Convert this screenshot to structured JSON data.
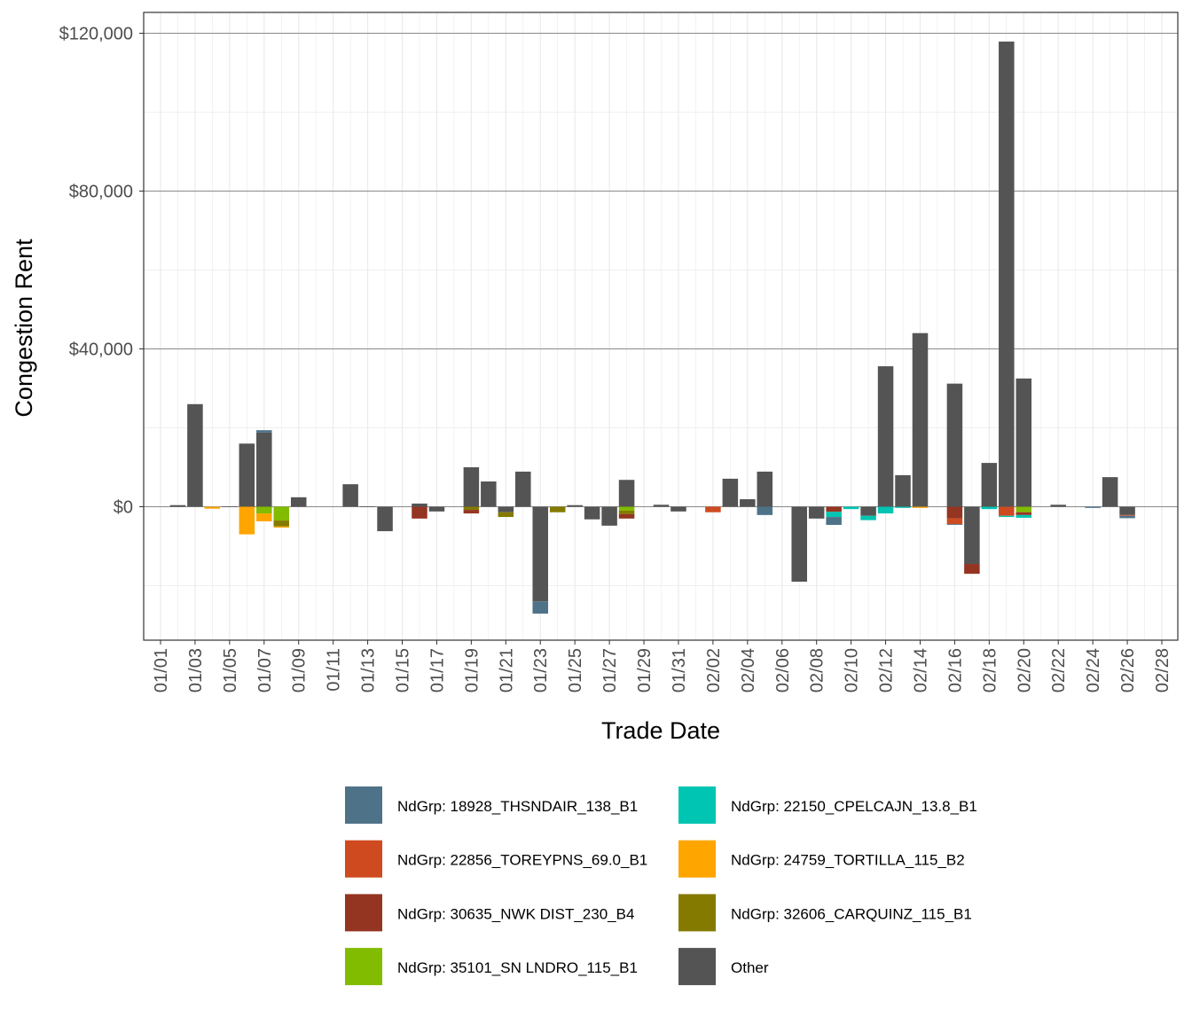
{
  "chart_data": {
    "type": "bar",
    "stacked": true,
    "xlabel": "Trade Date",
    "ylabel": "Congestion Rent",
    "ylim": [
      -34000,
      125000
    ],
    "yticks": [
      0,
      40000,
      80000,
      120000
    ],
    "ytick_labels": [
      "$0",
      "$40,000",
      "$80,000",
      "$120,000"
    ],
    "xlim": [
      "01/01",
      "02/28"
    ],
    "xtick_labels": [
      "01/01",
      "01/03",
      "01/05",
      "01/07",
      "01/09",
      "01/11",
      "01/13",
      "01/15",
      "01/17",
      "01/19",
      "01/21",
      "01/23",
      "01/25",
      "01/27",
      "01/29",
      "01/31",
      "02/02",
      "02/04",
      "02/06",
      "02/08",
      "02/10",
      "02/12",
      "02/14",
      "02/16",
      "02/18",
      "02/20",
      "02/22",
      "02/24",
      "02/26",
      "02/28"
    ],
    "grid": true,
    "legend_position": "bottom",
    "series": [
      {
        "name": "NdGrp: 18928_THSNDAIR_138_B1",
        "color": "#4E7389",
        "points": [
          [
            "01/07",
            600
          ],
          [
            "01/23",
            -3100
          ],
          [
            "02/05",
            -2100
          ],
          [
            "02/09",
            -2000
          ],
          [
            "02/16",
            -200
          ],
          [
            "02/24",
            -300
          ],
          [
            "02/26",
            -600
          ]
        ]
      },
      {
        "name": "NdGrp: 22150_CPELCAJN_13.8_B1",
        "color": "#00C5B2",
        "points": [
          [
            "02/09",
            -1300
          ],
          [
            "02/10",
            -600
          ],
          [
            "02/11",
            -1100
          ],
          [
            "02/12",
            -1700
          ],
          [
            "02/13",
            -300
          ],
          [
            "02/18",
            -600
          ],
          [
            "02/19",
            -300
          ],
          [
            "02/20",
            -700
          ]
        ]
      },
      {
        "name": "NdGrp: 22856_TOREYPNS_69.0_B1",
        "color": "#D04A20",
        "points": [
          [
            "02/02",
            -1400
          ],
          [
            "02/16",
            -1400
          ],
          [
            "02/19",
            -2300
          ],
          [
            "02/26",
            -200
          ]
        ]
      },
      {
        "name": "NdGrp: 24759_TORTILLA_115_B2",
        "color": "#FFA500",
        "points": [
          [
            "01/04",
            -500
          ],
          [
            "01/06",
            -7000
          ],
          [
            "01/07",
            -2000
          ],
          [
            "01/08",
            -300
          ],
          [
            "02/14",
            -300
          ]
        ]
      },
      {
        "name": "NdGrp: 30635_NWK DIST_230_B4",
        "color": "#943522",
        "points": [
          [
            "01/16",
            -3000
          ],
          [
            "01/19",
            -900
          ],
          [
            "01/28",
            -1100
          ],
          [
            "02/09",
            -1300
          ],
          [
            "02/16",
            -3000
          ],
          [
            "02/17",
            -2500
          ],
          [
            "02/20",
            -700
          ]
        ]
      },
      {
        "name": "NdGrp: 32606_CARQUINZ_115_B1",
        "color": "#857A00",
        "points": [
          [
            "01/08",
            -1500
          ],
          [
            "01/19",
            -800
          ],
          [
            "01/21",
            -1200
          ],
          [
            "01/24",
            -1400
          ],
          [
            "01/28",
            -900
          ]
        ]
      },
      {
        "name": "NdGrp: 35101_SN LNDRO_115_B1",
        "color": "#82BC00",
        "points": [
          [
            "01/07",
            -1700
          ],
          [
            "01/08",
            -3500
          ],
          [
            "01/28",
            -1000
          ],
          [
            "02/20",
            -1400
          ]
        ]
      },
      {
        "name": "Other",
        "color": "#545454",
        "points": [
          [
            "01/02",
            400
          ],
          [
            "01/03",
            26000
          ],
          [
            "01/05",
            100
          ],
          [
            "01/06",
            16000
          ],
          [
            "01/07",
            18800
          ],
          [
            "01/09",
            2400
          ],
          [
            "01/12",
            5700
          ],
          [
            "01/13",
            100
          ],
          [
            "01/14",
            -6200
          ],
          [
            "01/16",
            800
          ],
          [
            "01/17",
            -1200
          ],
          [
            "01/19",
            10000
          ],
          [
            "01/20",
            6400
          ],
          [
            "01/21",
            -1400
          ],
          [
            "01/22",
            8900
          ],
          [
            "01/23",
            -24000
          ],
          [
            "01/25",
            400
          ],
          [
            "01/26",
            -3200
          ],
          [
            "01/27",
            -4800
          ],
          [
            "01/28",
            6800
          ],
          [
            "01/30",
            500
          ],
          [
            "01/31",
            -1200
          ],
          [
            "02/03",
            7100
          ],
          [
            "02/04",
            1900
          ],
          [
            "02/05",
            8900
          ],
          [
            "02/07",
            -19000
          ],
          [
            "02/08",
            -3000
          ],
          [
            "02/11",
            -2300
          ],
          [
            "02/12",
            35600
          ],
          [
            "02/13",
            8000
          ],
          [
            "02/14",
            44000
          ],
          [
            "02/16",
            31200
          ],
          [
            "02/17",
            -14500
          ],
          [
            "02/18",
            11100
          ],
          [
            "02/19",
            117900
          ],
          [
            "02/20",
            32500
          ],
          [
            "02/22",
            500
          ],
          [
            "02/25",
            7500
          ],
          [
            "02/26",
            -2100
          ]
        ]
      }
    ]
  }
}
